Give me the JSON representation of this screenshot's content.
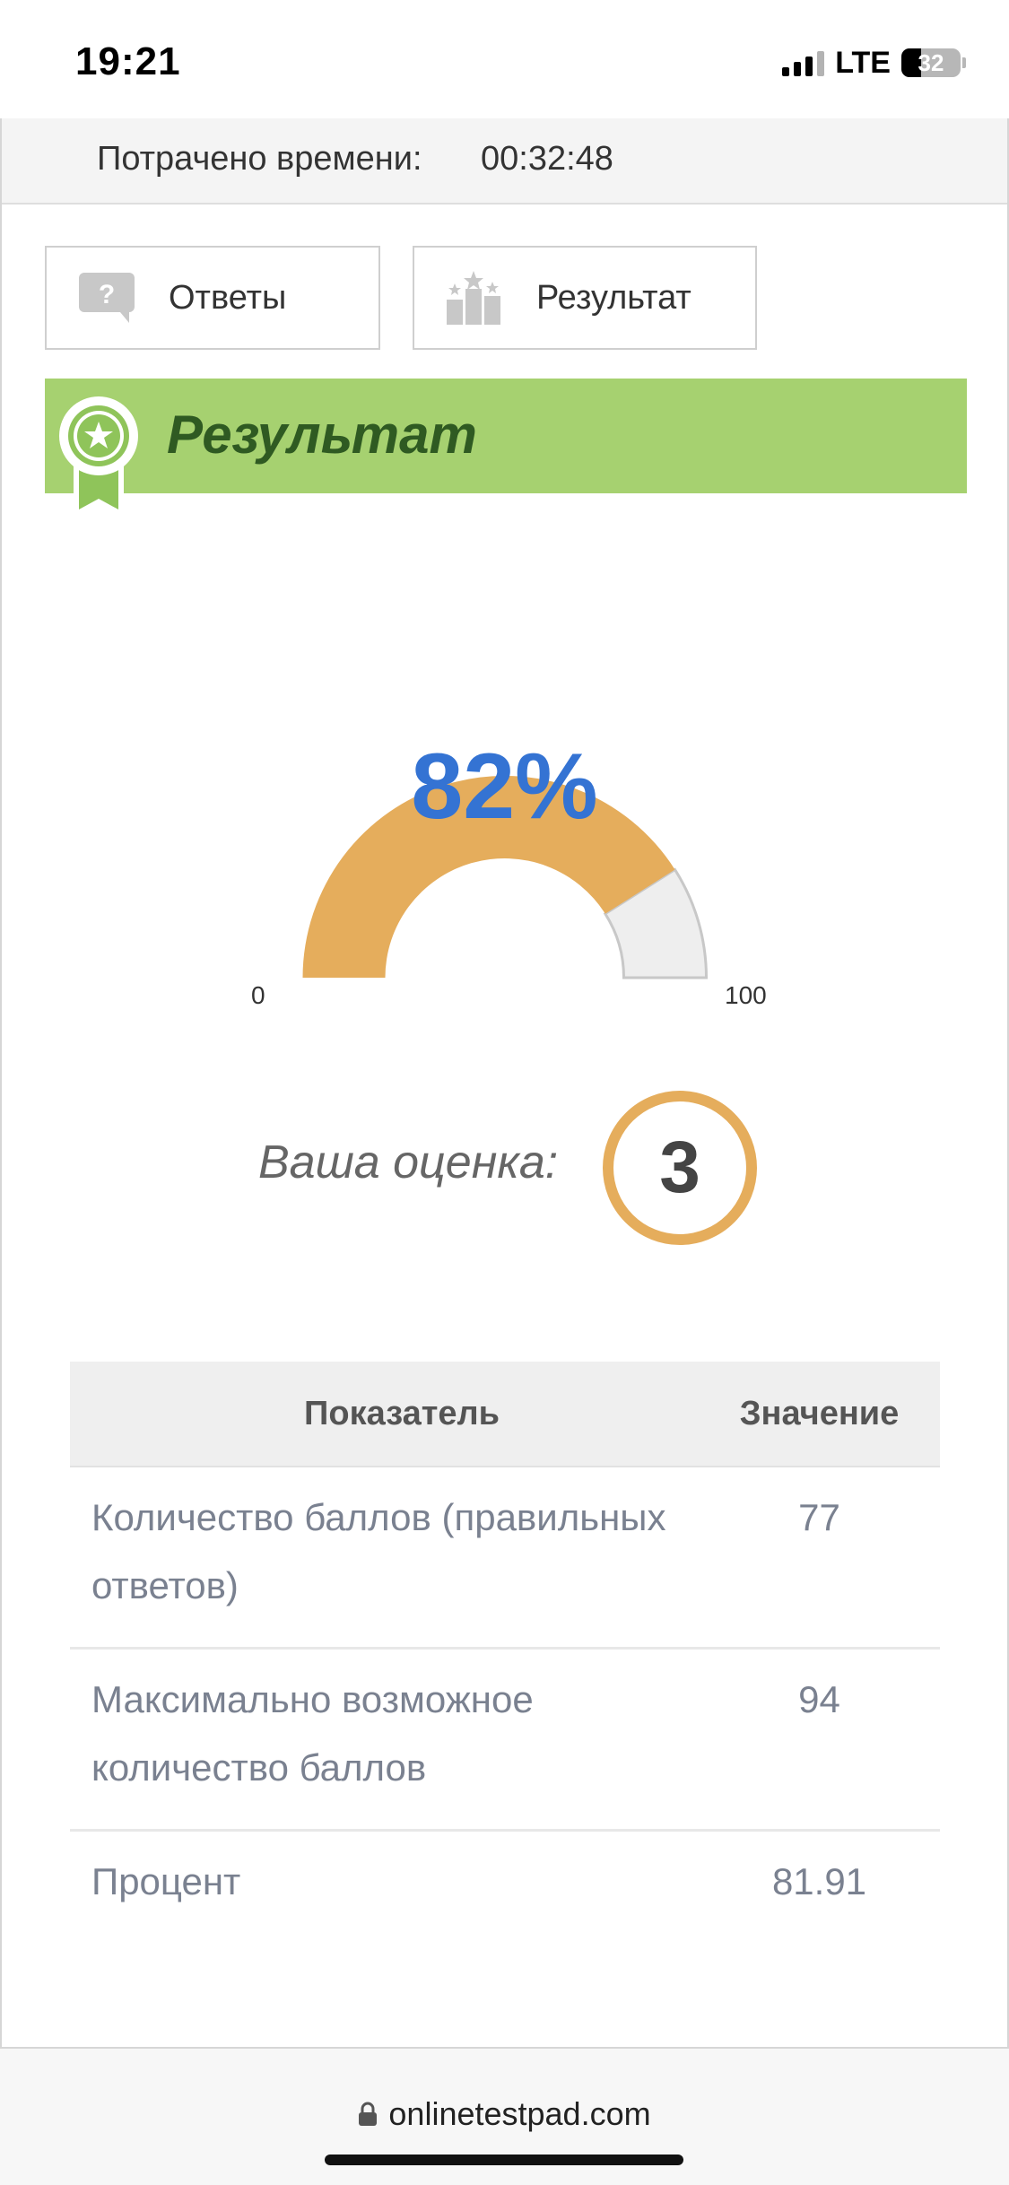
{
  "status": {
    "time": "19:21",
    "network": "LTE",
    "battery": "32"
  },
  "header": {
    "time_label": "Потрачено времени:",
    "time_value": "00:32:48"
  },
  "tabs": [
    {
      "label": "Ответы",
      "icon": "question-bubble-icon"
    },
    {
      "label": "Результат",
      "icon": "podium-icon"
    }
  ],
  "result": {
    "title": "Результат",
    "percent_text": "82%",
    "percent": 82,
    "min": "0",
    "max": "100",
    "grade_label": "Ваша оценка:",
    "grade": "3"
  },
  "table": {
    "headers": [
      "Показатель",
      "Значение"
    ],
    "rows": [
      {
        "label": "Количество баллов (правильных ответов)",
        "value": "77"
      },
      {
        "label": "Максимально возможное количество баллов",
        "value": "94"
      },
      {
        "label": "Процент",
        "value": "81.91"
      }
    ]
  },
  "browser": {
    "url": "onlinetestpad.com"
  },
  "colors": {
    "banner": "#a6d170",
    "gauge_fill": "#e5ad5c",
    "gauge_rest": "#eeeeee",
    "percent_text": "#3473d3"
  }
}
